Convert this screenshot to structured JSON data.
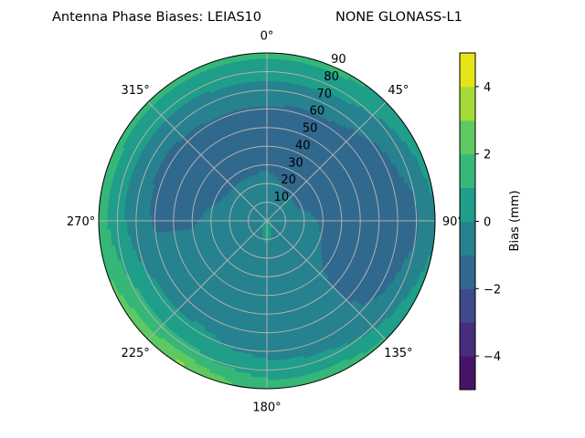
{
  "chart_data": {
    "type": "heatmap",
    "subtype": "polar-filled-contour",
    "title_left": "Antenna Phase Biases: LEIAS10",
    "title_right": "NONE GLONASS-L1",
    "angular_ticks": [
      {
        "az": 0,
        "label": "0°"
      },
      {
        "az": 45,
        "label": "45°"
      },
      {
        "az": 90,
        "label": "90°"
      },
      {
        "az": 135,
        "label": "135°"
      },
      {
        "az": 180,
        "label": "180°"
      },
      {
        "az": 225,
        "label": "225°"
      },
      {
        "az": 270,
        "label": "270°"
      },
      {
        "az": 315,
        "label": "315°"
      }
    ],
    "radial_ticks": [
      "10",
      "20",
      "30",
      "40",
      "50",
      "60",
      "70",
      "80",
      "90"
    ],
    "radial_range": [
      0,
      90
    ],
    "theta_zero": "north",
    "theta_direction": "clockwise",
    "grid": true,
    "azimuths": [
      0,
      30,
      60,
      90,
      120,
      150,
      180,
      210,
      240,
      270,
      300,
      330
    ],
    "zeniths": [
      0,
      10,
      20,
      30,
      40,
      50,
      60,
      70,
      80,
      90
    ],
    "values": [
      [
        0.1,
        -0.5,
        -0.6,
        -1.2,
        -1.4,
        -1.4,
        -1.1,
        -0.5,
        0.5,
        1.3
      ],
      [
        0.1,
        -0.5,
        -1.1,
        -1.4,
        -1.5,
        -1.5,
        -1.2,
        -0.6,
        0.4,
        1.2
      ],
      [
        0.1,
        -0.5,
        -1.2,
        -1.5,
        -1.5,
        -1.5,
        -1.4,
        -1.2,
        -0.5,
        0.6
      ],
      [
        0.1,
        -0.5,
        -0.7,
        -1.1,
        -1.4,
        -1.5,
        -1.5,
        -1.4,
        -1.2,
        -0.2
      ],
      [
        0.2,
        -0.5,
        -0.6,
        -0.9,
        -1.2,
        -1.3,
        -1.3,
        -1.2,
        -0.6,
        0.6
      ],
      [
        0.3,
        -0.4,
        -0.5,
        -0.6,
        -0.7,
        -0.7,
        -0.7,
        -0.6,
        0.2,
        1.5
      ],
      [
        0.5,
        0.2,
        -0.5,
        -0.6,
        -0.6,
        -0.6,
        -0.6,
        -0.4,
        0.5,
        1.5
      ],
      [
        0.3,
        -0.3,
        -0.5,
        -0.5,
        -0.5,
        -0.5,
        -0.4,
        0.2,
        1.2,
        3.2
      ],
      [
        0.2,
        -0.4,
        -0.5,
        -0.5,
        -0.5,
        -0.5,
        -0.5,
        0.2,
        1.2,
        2.4
      ],
      [
        0.1,
        -0.5,
        -0.6,
        -0.8,
        -1.1,
        -1.1,
        -1.1,
        -0.6,
        0.4,
        1.5
      ],
      [
        0.1,
        -0.5,
        -0.7,
        -1.2,
        -1.3,
        -1.3,
        -1.2,
        -0.8,
        0.3,
        1.4
      ],
      [
        0.1,
        -0.5,
        -0.8,
        -1.2,
        -1.3,
        -1.3,
        -1.1,
        -0.6,
        0.4,
        1.3
      ]
    ],
    "levels": [
      -5,
      -4,
      -3,
      -2,
      -1,
      0,
      1,
      2,
      3,
      4,
      5
    ],
    "colormap": "viridis",
    "level_colors": [
      "#481467",
      "#472d7b",
      "#3e4a89",
      "#31688e",
      "#26828e",
      "#1f9e89",
      "#35b779",
      "#5ec962",
      "#a5db36",
      "#e5e419"
    ],
    "colorbar": {
      "label": "Bias (mm)",
      "range": [
        -5,
        5
      ],
      "ticks": [
        {
          "value": 4,
          "label": "4"
        },
        {
          "value": 2,
          "label": "2"
        },
        {
          "value": 0,
          "label": "0"
        },
        {
          "value": -2,
          "label": "−2"
        },
        {
          "value": -4,
          "label": "−4"
        }
      ]
    }
  }
}
